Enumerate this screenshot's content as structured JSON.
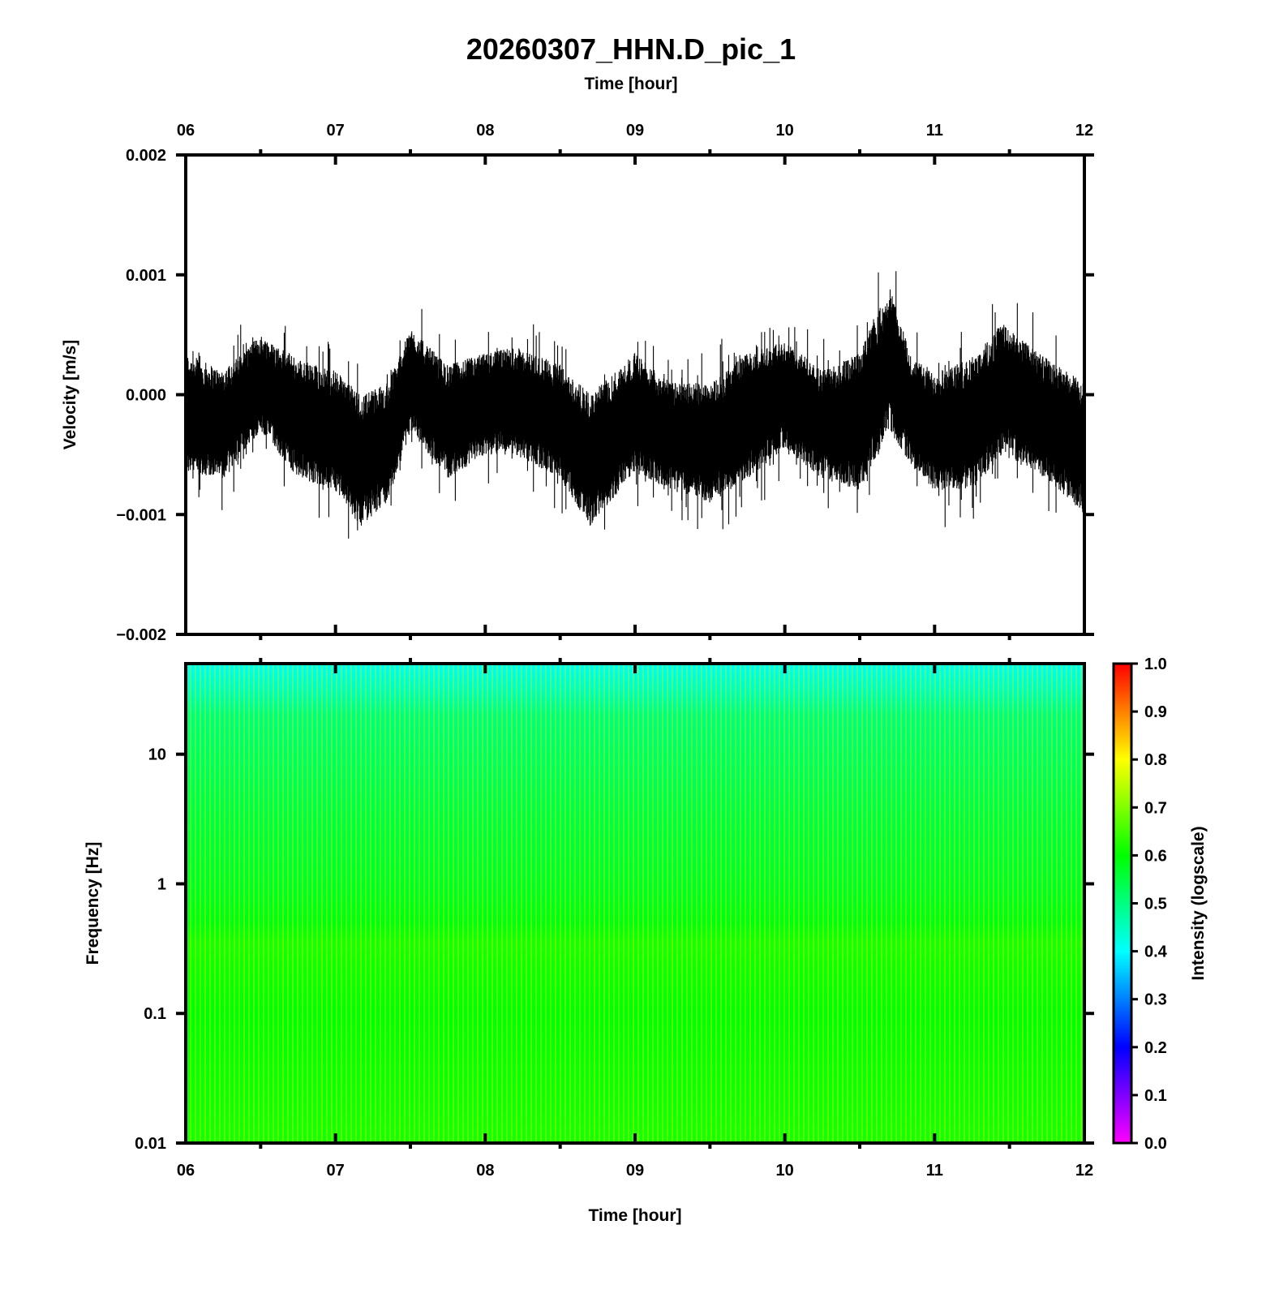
{
  "chart_data": [
    {
      "type": "line",
      "title": "20260307_HHN.D_pic_1",
      "x_top_label": "Time [hour]",
      "ylabel": "Velocity [m/s]",
      "xlim": [
        6,
        12
      ],
      "ylim": [
        -0.002,
        0.002
      ],
      "x_ticks": [
        "06",
        "07",
        "08",
        "09",
        "10",
        "11",
        "12"
      ],
      "y_ticks": [
        "0.002",
        "0.001",
        "0.000",
        "−0.001",
        "−0.002"
      ],
      "y_tick_values": [
        0.002,
        0.001,
        0.0,
        -0.001,
        -0.002
      ],
      "series": [
        {
          "line_color": "#000000",
          "x": [
            6.0,
            6.25,
            6.5,
            6.75,
            7.0,
            7.17,
            7.35,
            7.5,
            7.75,
            8.0,
            8.2,
            8.5,
            8.7,
            9.0,
            9.25,
            9.5,
            9.75,
            10.0,
            10.25,
            10.5,
            10.7,
            10.85,
            11.0,
            11.25,
            11.45,
            11.75,
            12.0
          ],
          "envelope_upper": [
            0.00035,
            0.0002,
            0.0005,
            0.0003,
            0.0002,
            0.0,
            0.0001,
            0.00055,
            0.00025,
            0.00035,
            0.0004,
            0.00025,
            0.0,
            0.00035,
            0.0001,
            0.0001,
            0.00035,
            0.00045,
            0.0002,
            0.00035,
            0.0009,
            0.0003,
            0.0002,
            0.0003,
            0.0006,
            0.0003,
            0.0001
          ],
          "envelope_lower": [
            -0.00065,
            -0.0007,
            -0.0003,
            -0.0007,
            -0.0008,
            -0.0011,
            -0.0009,
            -0.0003,
            -0.0007,
            -0.0005,
            -0.0005,
            -0.0007,
            -0.0011,
            -0.00065,
            -0.0008,
            -0.0009,
            -0.0007,
            -0.00045,
            -0.0007,
            -0.0008,
            -0.0003,
            -0.0006,
            -0.0008,
            -0.0008,
            -0.0005,
            -0.0007,
            -0.001
          ]
        }
      ]
    },
    {
      "type": "heatmap",
      "xlabel": "Time [hour]",
      "ylabel": "Frequency [Hz]",
      "xlim": [
        6,
        12
      ],
      "ylim": [
        0.01,
        50
      ],
      "y_scale": "log",
      "x_ticks": [
        "06",
        "07",
        "08",
        "09",
        "10",
        "11",
        "12"
      ],
      "y_ticks": [
        "10",
        "1",
        "0.1",
        "0.01"
      ],
      "y_tick_values": [
        10,
        1,
        0.1,
        0.01
      ],
      "colorbar": {
        "label": "Intensity (logscale)",
        "range": [
          0.0,
          1.0
        ],
        "ticks": [
          "1.0",
          "0.9",
          "0.8",
          "0.7",
          "0.6",
          "0.5",
          "0.4",
          "0.3",
          "0.2",
          "0.1",
          "0.0"
        ],
        "tick_values": [
          1.0,
          0.9,
          0.8,
          0.7,
          0.6,
          0.5,
          0.4,
          0.3,
          0.2,
          0.1,
          0.0
        ],
        "colors": [
          "#ff00ff",
          "#8000ff",
          "#0000ff",
          "#0080ff",
          "#00ffff",
          "#00ff80",
          "#00ff00",
          "#80ff00",
          "#ffff00",
          "#ff8000",
          "#ff0000"
        ]
      },
      "intensity_profile": {
        "frequency": [
          50,
          30,
          20,
          10,
          3,
          1,
          0.5,
          0.35,
          0.2,
          0.1,
          0.03,
          0.01
        ],
        "intensity": [
          0.4,
          0.45,
          0.5,
          0.52,
          0.55,
          0.57,
          0.59,
          0.62,
          0.61,
          0.6,
          0.61,
          0.62
        ]
      }
    }
  ]
}
